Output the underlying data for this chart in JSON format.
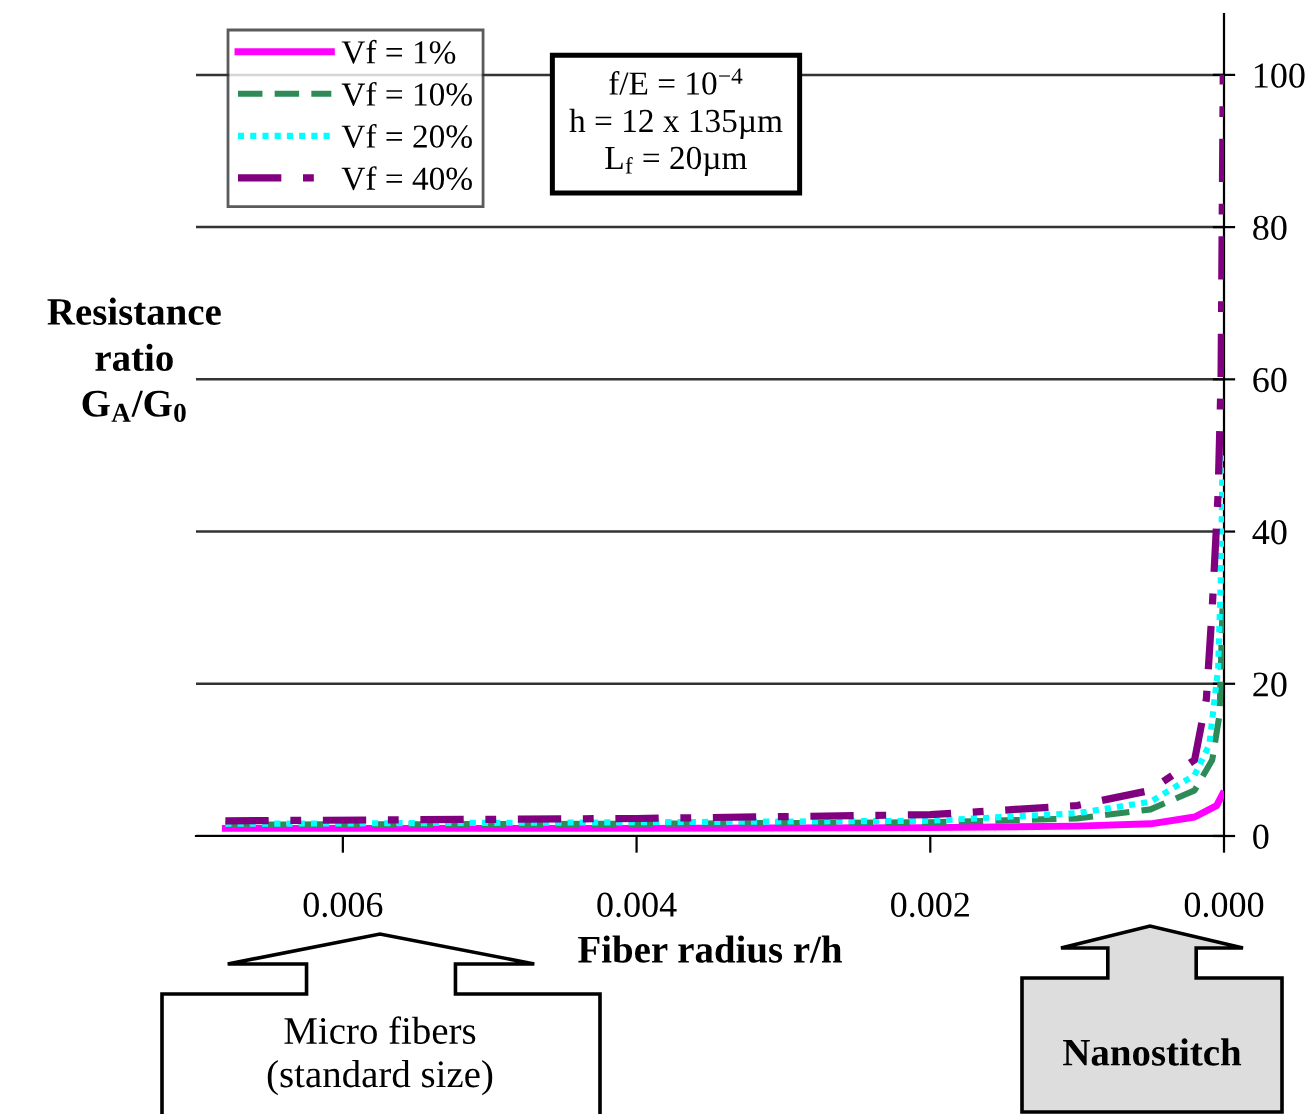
{
  "chart_data": {
    "type": "line",
    "xlabel": "Fiber radius r/h",
    "ylabel": "Resistance\nratio\nG$_{A}$/G$_{0}$",
    "xlim": [
      0.007,
      0
    ],
    "xticks": [
      {
        "value": 0.006,
        "label": "0.006"
      },
      {
        "value": 0.004,
        "label": "0.004"
      },
      {
        "value": 0.002,
        "label": "0.002"
      },
      {
        "value": 0,
        "label": "0.000"
      }
    ],
    "ylim": [
      0,
      108
    ],
    "yticks": [
      0,
      20,
      40,
      60,
      80,
      100
    ],
    "grid": "y",
    "legend": "top left",
    "series": [
      {
        "name": "Vf = 1%",
        "color": "#ff00ff",
        "line_style": "solid",
        "x": [
          0.0068,
          0.004,
          0.002,
          0.001,
          0.0005,
          0.0002,
          5e-05,
          1e-05
        ],
        "values": [
          1.0,
          1.0,
          1.1,
          1.3,
          1.6,
          2.5,
          4,
          5.5
        ]
      },
      {
        "name": "Vf = 10%",
        "color": "#2e8b57",
        "line_style": "dashed",
        "x": [
          0.0068,
          0.004,
          0.002,
          0.001,
          0.0005,
          0.0002,
          8e-05,
          3e-05,
          1e-05
        ],
        "values": [
          1.5,
          1.6,
          1.8,
          2.3,
          3.5,
          6,
          10,
          16,
          30
        ]
      },
      {
        "name": "Vf = 20%",
        "color": "#00ffff",
        "line_style": "dotted",
        "x": [
          0.0068,
          0.004,
          0.002,
          0.001,
          0.0005,
          0.0002,
          0.0001,
          4e-05,
          2e-05,
          1e-05
        ],
        "values": [
          1.6,
          1.8,
          2.0,
          3,
          4.5,
          8,
          12,
          22,
          35,
          50
        ]
      },
      {
        "name": "Vf = 40%",
        "color": "#800080",
        "line_style": "dashdot",
        "x": [
          0.0068,
          0.004,
          0.002,
          0.001,
          0.0005,
          0.0002,
          0.00012,
          8e-05,
          4e-05,
          2e-05,
          5e-06
        ],
        "values": [
          2,
          2.3,
          2.8,
          4,
          6,
          10,
          18,
          30,
          45,
          60,
          100
        ]
      }
    ],
    "annotations": [
      "f/E = 10$^{−4}$\nh = 12 x 135µm\nL$_{f}$ = 20µm",
      "Micro fibers\n(standard size)",
      "Nanostitch"
    ]
  }
}
